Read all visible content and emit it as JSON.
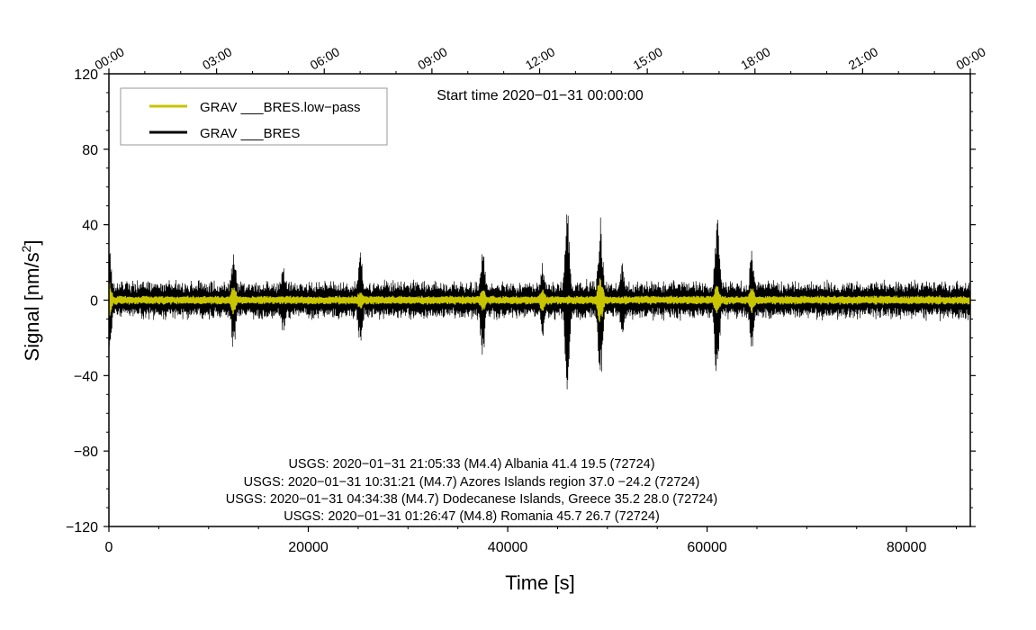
{
  "chart_data": {
    "type": "line",
    "xlabel": "Time [s]",
    "ylabel": "Signal [nm/s",
    "ylabel_superscript": "2",
    "ylabel_suffix": "]",
    "xlim": [
      0,
      86400
    ],
    "ylim": [
      -120,
      120
    ],
    "x_ticks": [
      {
        "value": 0,
        "label": "0"
      },
      {
        "value": 20000,
        "label": "20000"
      },
      {
        "value": 40000,
        "label": "40000"
      },
      {
        "value": 60000,
        "label": "60000"
      },
      {
        "value": 80000,
        "label": "80000"
      }
    ],
    "y_ticks": [
      {
        "value": 120,
        "label": "120"
      },
      {
        "value": 80,
        "label": "80"
      },
      {
        "value": 40,
        "label": "40"
      },
      {
        "value": 0,
        "label": "0"
      },
      {
        "value": -40,
        "label": "−40"
      },
      {
        "value": -80,
        "label": "−80"
      },
      {
        "value": -120,
        "label": "−120"
      }
    ],
    "top_ticks": [
      {
        "value": 0,
        "label": "00:00"
      },
      {
        "value": 10800,
        "label": "03:00"
      },
      {
        "value": 21600,
        "label": "06:00"
      },
      {
        "value": 32400,
        "label": "09:00"
      },
      {
        "value": 43200,
        "label": "12:00"
      },
      {
        "value": 54000,
        "label": "15:00"
      },
      {
        "value": 64800,
        "label": "18:00"
      },
      {
        "value": 75600,
        "label": "21:00"
      },
      {
        "value": 86400,
        "label": "00:00"
      }
    ],
    "start_time": "Start time 2020−01−31 00:00:00",
    "legend": {
      "position": "top-left",
      "entries": [
        {
          "name": "GRAV ___BRES.low−pass",
          "color": "#c8c400"
        },
        {
          "name": "GRAV ___BRES",
          "color": "#000000"
        }
      ]
    },
    "series": [
      {
        "name": "GRAV ___BRES",
        "color": "#000000",
        "background_amplitude": 9,
        "bursts": [
          {
            "x": 0,
            "peak": 36
          },
          {
            "x": 12500,
            "peak": 28
          },
          {
            "x": 17500,
            "peak": 18
          },
          {
            "x": 25200,
            "peak": 26
          },
          {
            "x": 37500,
            "peak": 31
          },
          {
            "x": 43500,
            "peak": 20
          },
          {
            "x": 46000,
            "peak": 48
          },
          {
            "x": 49300,
            "peak": 44
          },
          {
            "x": 51500,
            "peak": 20
          },
          {
            "x": 61000,
            "peak": 45
          },
          {
            "x": 64500,
            "peak": 27
          }
        ]
      },
      {
        "name": "GRAV ___BRES.low−pass",
        "color": "#c8c400",
        "background_amplitude": 2,
        "bursts": [
          {
            "x": 0,
            "peak": 10
          },
          {
            "x": 12500,
            "peak": 8
          },
          {
            "x": 25200,
            "peak": 5
          },
          {
            "x": 37500,
            "peak": 6
          },
          {
            "x": 43500,
            "peak": 6
          },
          {
            "x": 49300,
            "peak": 13
          },
          {
            "x": 61000,
            "peak": 8
          },
          {
            "x": 64500,
            "peak": 7
          }
        ]
      }
    ],
    "annotations": [
      "USGS: 2020−01−31 21:05:33 (M4.4) Albania 41.4 19.5 (72724)",
      "USGS: 2020−01−31 10:31:21 (M4.7) Azores Islands region 37.0 −24.2 (72724)",
      "USGS: 2020−01−31 04:34:38 (M4.7) Dodecanese Islands, Greece 35.2 28.0 (72724)",
      "USGS: 2020−01−31 01:26:47 (M4.8) Romania 45.7 26.7 (72724)"
    ]
  }
}
